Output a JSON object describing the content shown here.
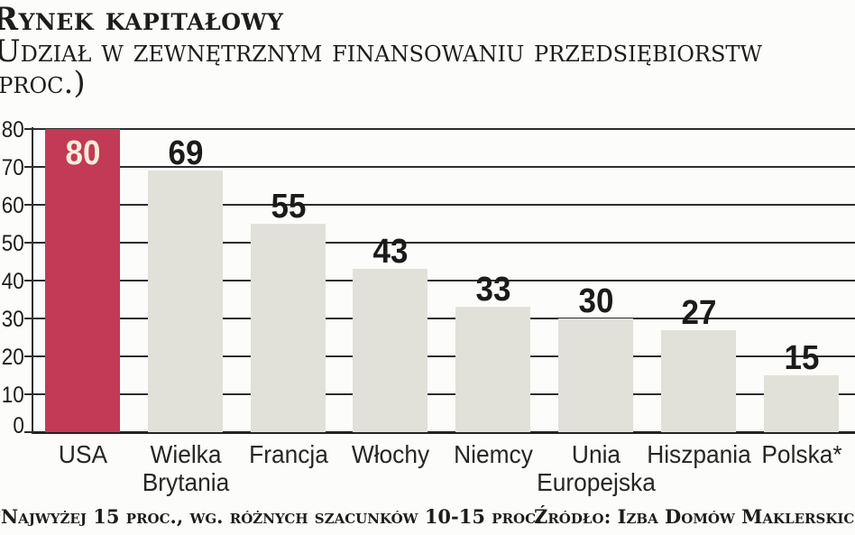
{
  "header": {
    "title": "Rynek kapitałowy",
    "subtitle_line1": "Udział w zewnętrznym finansowaniu przedsiębiorstw",
    "subtitle_line2": "(proc.)"
  },
  "chart_data": {
    "type": "bar",
    "title": "Rynek kapitałowy",
    "subtitle": "Udział w zewnętrznym finansowaniu przedsiębiorstw (proc.)",
    "categories": [
      "USA",
      "Wielka Brytania",
      "Francja",
      "Włochy",
      "Niemcy",
      "Unia Europejska",
      "Hiszpania",
      "Polska*"
    ],
    "category_display": [
      "USA",
      "Wielka\nBrytania",
      "Francja",
      "Włochy",
      "Niemcy",
      "Unia\nEuropejska",
      "Hiszpania",
      "Polska*"
    ],
    "values": [
      80,
      69,
      55,
      43,
      33,
      30,
      27,
      15
    ],
    "xlabel": "",
    "ylabel": "",
    "ylim": [
      0,
      80
    ],
    "yticks": [
      0,
      10,
      20,
      30,
      40,
      50,
      60,
      70,
      80
    ],
    "grid": true,
    "legend": "none",
    "highlight_index": 0,
    "colors": {
      "highlight_bar": "#c23a55",
      "bar": "#e1e1d9",
      "gridline": "#2d2d2d",
      "value_label": "#1b1b19",
      "highlight_value_label": "#f6eedb"
    }
  },
  "footer": {
    "note": "*Najwyżej 15 proc., wg. różnych szacunków 10-15 proc.",
    "source": "Źródło: Izba Domów Maklerskich"
  }
}
